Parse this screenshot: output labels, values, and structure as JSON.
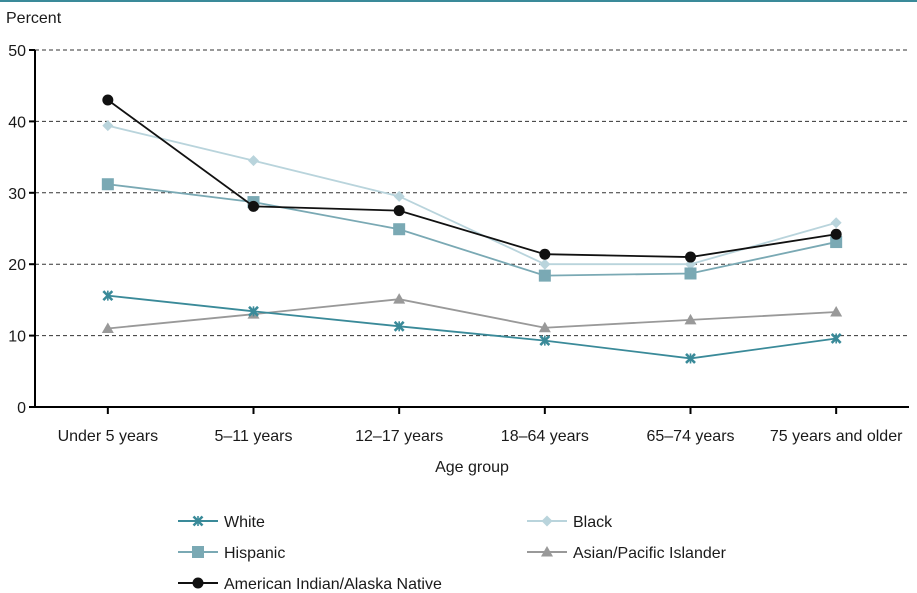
{
  "chart_data": {
    "type": "line",
    "title": "",
    "xlabel": "Age group",
    "ylabel": "Percent",
    "ylim": [
      0,
      50
    ],
    "yticks": [
      0,
      10,
      20,
      30,
      40,
      50
    ],
    "grid": "horizontal dashed",
    "legend_position": "bottom",
    "categories": [
      "Under 5 years",
      "5–11 years",
      "12–17 years",
      "18–64 years",
      "65–74 years",
      "75 years and older"
    ],
    "series": [
      {
        "name": "White",
        "color": "#3a8a99",
        "marker": "x",
        "values": [
          15.6,
          13.4,
          11.3,
          9.3,
          6.8,
          9.6
        ]
      },
      {
        "name": "Black",
        "color": "#b9d4dc",
        "marker": "diamond",
        "values": [
          39.4,
          34.5,
          29.5,
          20.0,
          20.0,
          25.8
        ]
      },
      {
        "name": "Hispanic",
        "color": "#7aa9b4",
        "marker": "square",
        "values": [
          31.2,
          28.7,
          24.9,
          18.4,
          18.7,
          23.1
        ]
      },
      {
        "name": "Asian/Pacific Islander",
        "color": "#999999",
        "marker": "triangle",
        "values": [
          11.0,
          13.0,
          15.1,
          11.1,
          12.2,
          13.3
        ]
      },
      {
        "name": "American Indian/Alaska Native",
        "color": "#111111",
        "marker": "circle",
        "values": [
          43.0,
          28.1,
          27.5,
          21.4,
          21.0,
          24.2
        ]
      }
    ],
    "legend_order": [
      "White",
      "Black",
      "Hispanic",
      "Asian/Pacific Islander",
      "American Indian/Alaska Native"
    ]
  }
}
